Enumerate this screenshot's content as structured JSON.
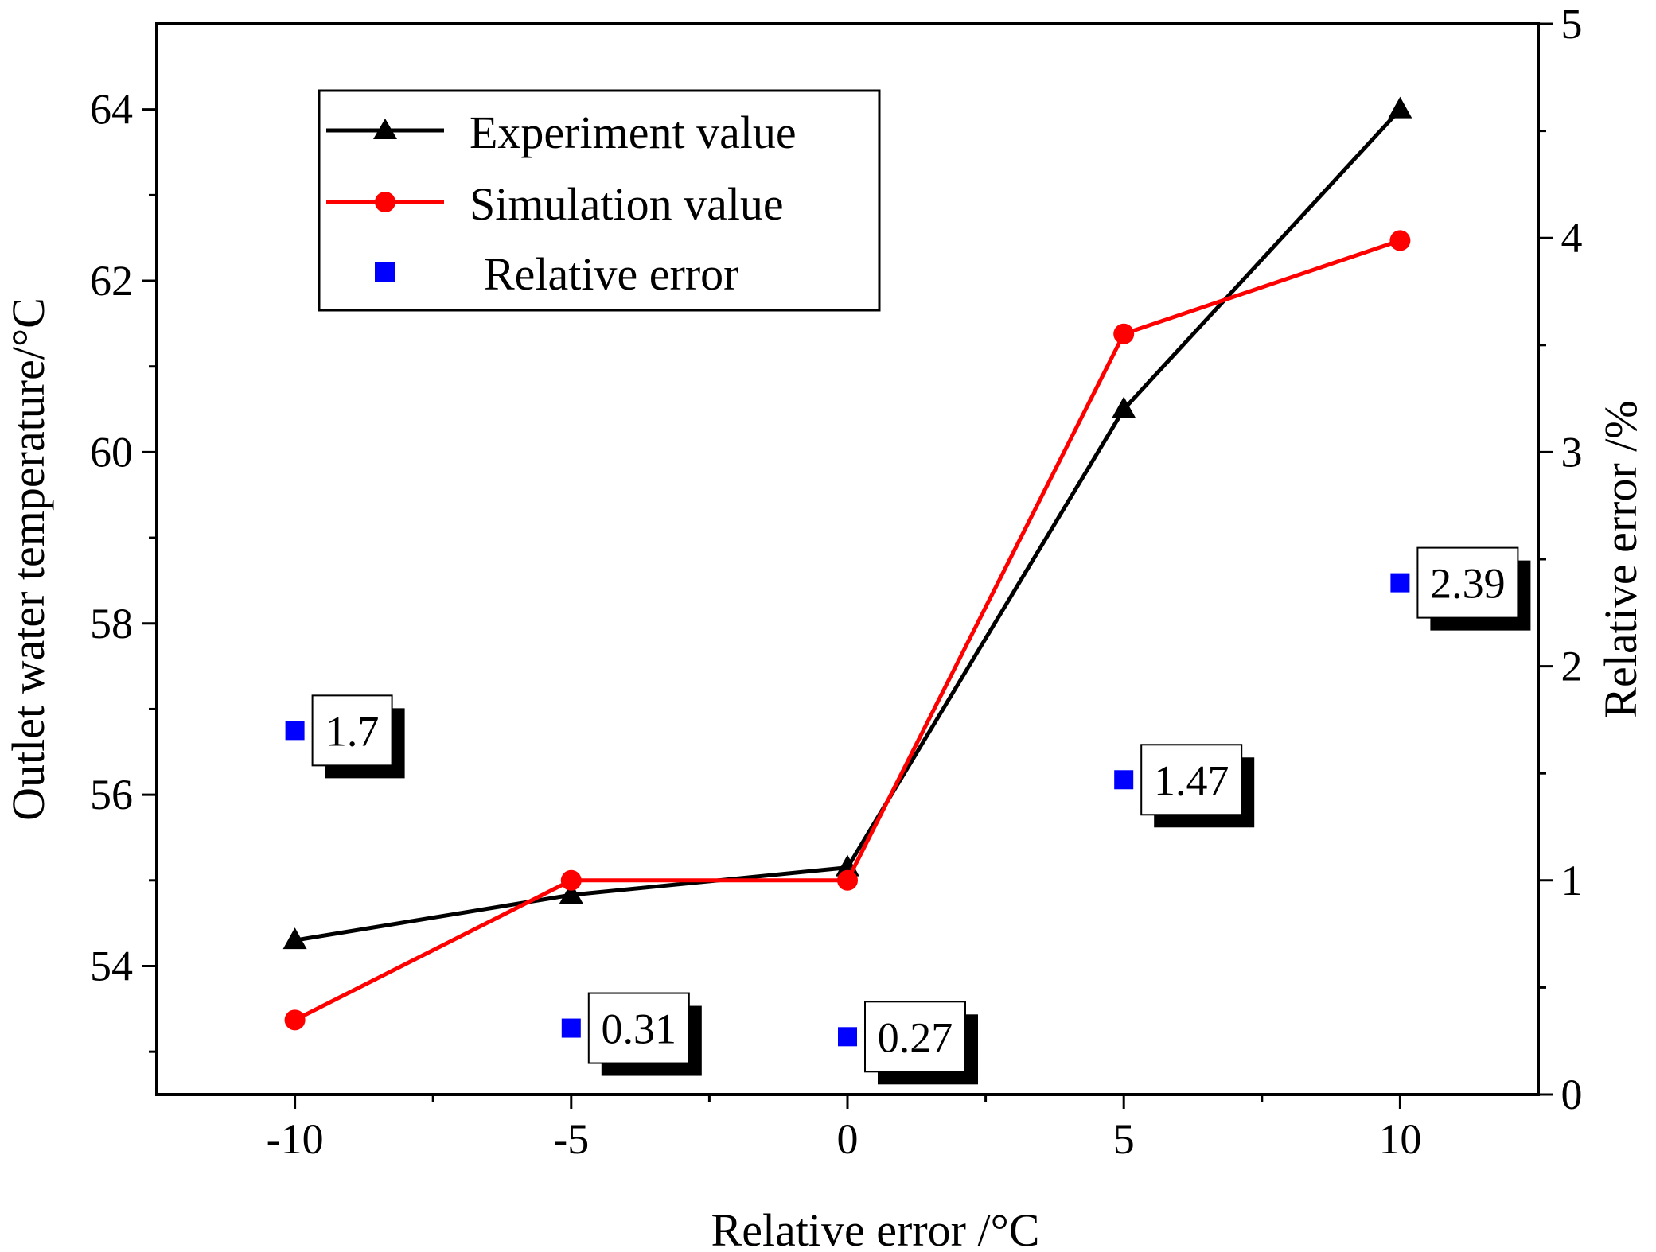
{
  "chart_data": {
    "type": "line",
    "xlabel": "Relative error /°C",
    "ylabel": "Outlet water temperature/°C",
    "y2label": "Relative error /%",
    "x": [
      -10,
      -5,
      0,
      5,
      10
    ],
    "xlim": [
      -12.5,
      12.5
    ],
    "ylim": [
      52.5,
      65
    ],
    "y2lim": [
      0,
      5
    ],
    "x_ticks": [
      -10,
      -5,
      0,
      5,
      10
    ],
    "y_ticks": [
      54,
      56,
      58,
      60,
      62,
      64
    ],
    "y2_ticks": [
      0,
      1,
      2,
      3,
      4,
      5
    ],
    "series": [
      {
        "name": "Experiment value",
        "axis": "left",
        "marker": "triangle",
        "color": "#000000",
        "values": [
          54.3,
          54.83,
          55.15,
          60.5,
          64.0
        ]
      },
      {
        "name": "Simulation value",
        "axis": "left",
        "marker": "circle",
        "color": "#ff0000",
        "values": [
          53.37,
          55.0,
          55.0,
          61.38,
          62.47
        ]
      },
      {
        "name": "Relative error",
        "axis": "right",
        "marker": "square",
        "color": "#0000ff",
        "values": [
          1.7,
          0.31,
          0.27,
          1.47,
          2.39
        ]
      }
    ],
    "data_labels": [
      "1.7",
      "0.31",
      "0.27",
      "1.47",
      "2.39"
    ],
    "legend_position": "top-left"
  }
}
